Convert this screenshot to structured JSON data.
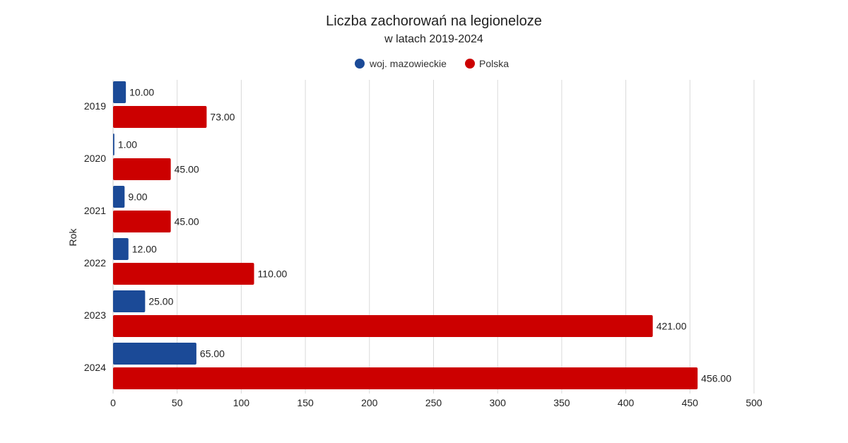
{
  "chart_data": {
    "type": "bar",
    "orientation": "horizontal",
    "title": "Liczba zachorowań na legioneloze",
    "subtitle": "w latach 2019-2024",
    "ylabel": "Rok",
    "xlabel": "",
    "categories": [
      "2019",
      "2020",
      "2021",
      "2022",
      "2023",
      "2024"
    ],
    "series": [
      {
        "name": "woj. mazowieckie",
        "color": "#1b4a97",
        "values": [
          10,
          1,
          9,
          12,
          25,
          65
        ]
      },
      {
        "name": "Polska",
        "color": "#cc0000",
        "values": [
          73,
          45,
          45,
          110,
          421,
          456
        ]
      }
    ],
    "value_labels": [
      [
        "10.00",
        "1.00",
        "9.00",
        "12.00",
        "25.00",
        "65.00"
      ],
      [
        "73.00",
        "45.00",
        "45.00",
        "110.00",
        "421.00",
        "456.00"
      ]
    ],
    "xlim": [
      0,
      500
    ],
    "xticks": [
      0,
      50,
      100,
      150,
      200,
      250,
      300,
      350,
      400,
      450,
      500
    ],
    "grid": true,
    "legend_position": "top-center"
  }
}
